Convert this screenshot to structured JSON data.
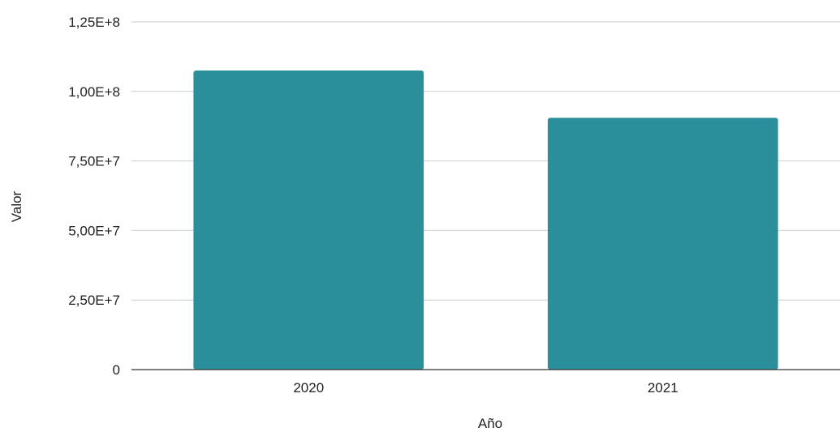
{
  "chart_data": {
    "type": "bar",
    "title": "",
    "xlabel": "Año",
    "ylabel": "Valor",
    "categories": [
      "2020",
      "2021"
    ],
    "values": [
      107500000,
      90500000
    ],
    "ylim": [
      0,
      125000000
    ],
    "yticks": [
      0,
      25000000,
      50000000,
      75000000,
      100000000,
      125000000
    ],
    "ytick_labels": [
      "0",
      "2,50E+7",
      "5,00E+7",
      "7,50E+7",
      "1,00E+8",
      "1,25E+8"
    ],
    "grid": true,
    "legend": "none",
    "colors": {
      "bar": "#2b8f9b",
      "grid": "#cccccc",
      "axis": "#333333"
    }
  }
}
